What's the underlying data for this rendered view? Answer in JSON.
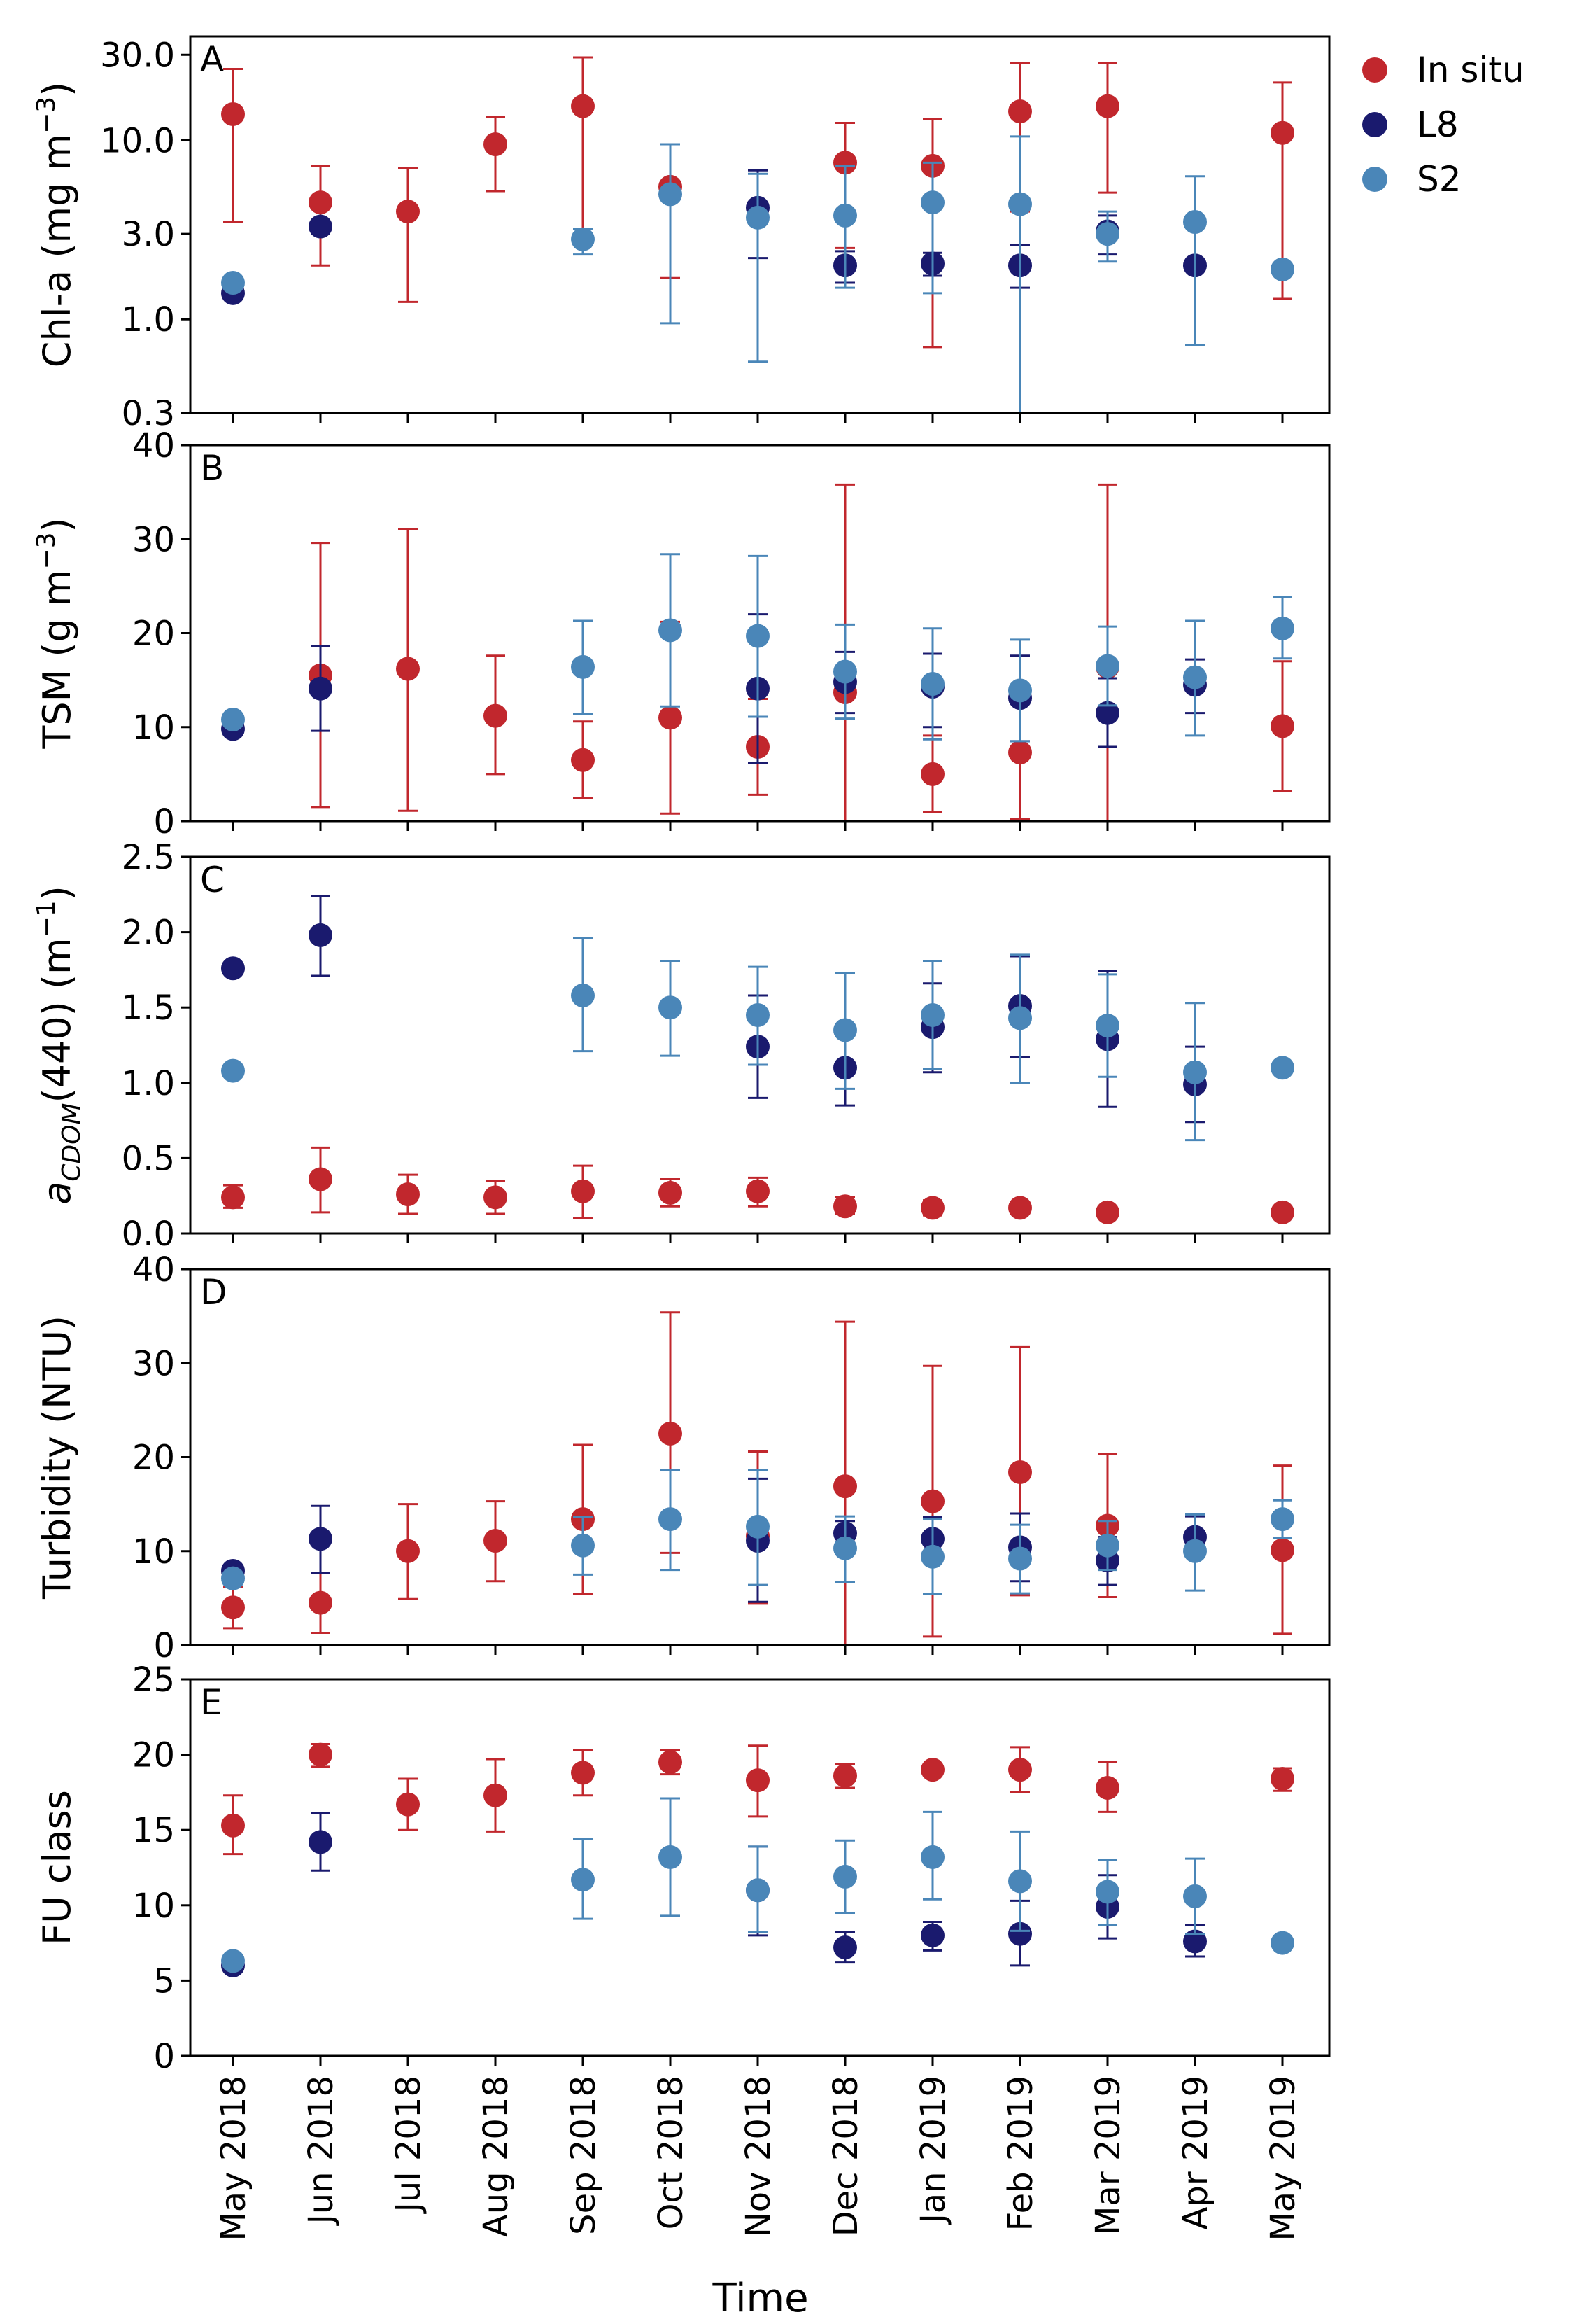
{
  "figure": {
    "xlabel": "Time",
    "legend": [
      {
        "name": "In situ",
        "color": "#c1272d"
      },
      {
        "name": "L8",
        "color": "#1a1a6e"
      },
      {
        "name": "S2",
        "color": "#4a86b8"
      }
    ]
  },
  "chart_data": [
    {
      "type": "scatter",
      "panel": "A",
      "ylabel": "Chl-a (mg m",
      "ylabel_sup": "−3",
      "ylabel_tail": ")",
      "yscale": "log",
      "ylim": [
        0.3,
        38
      ],
      "yticks": [
        0.3,
        1.0,
        3.0,
        10.0,
        30.0
      ],
      "ytick_labels": [
        "0.3",
        "1.0",
        "3.0",
        "10.0",
        "30.0"
      ],
      "categories": [
        "May 2018",
        "Jun 2018",
        "Jul 2018",
        "Aug 2018",
        "Sep 2018",
        "Oct 2018",
        "Nov 2018",
        "Dec 2018",
        "Jan 2019",
        "Feb 2019",
        "Mar 2019",
        "Apr 2019",
        "May 2019"
      ],
      "series": [
        {
          "name": "In situ",
          "values": [
            14,
            4.5,
            4,
            9.5,
            15.5,
            5.5,
            null,
            7.5,
            7.2,
            14.5,
            15.5,
            null,
            11
          ],
          "err_low": [
            3.5,
            2.0,
            1.25,
            5.2,
            3.2,
            1.7,
            null,
            2.5,
            0.7,
            4.0,
            5.1,
            null,
            1.3
          ],
          "err_high": [
            25,
            7.2,
            7.0,
            13.5,
            29,
            9.5,
            null,
            12.5,
            13.2,
            27,
            27,
            null,
            21
          ]
        },
        {
          "name": "L8",
          "values": [
            1.4,
            3.3,
            null,
            null,
            null,
            null,
            4.2,
            2.0,
            2.05,
            2.0,
            3.1,
            2.0,
            null
          ],
          "err_low": [
            null,
            3.0,
            null,
            null,
            null,
            null,
            2.2,
            1.6,
            1.75,
            1.5,
            2.3,
            null,
            null
          ],
          "err_high": [
            null,
            3.6,
            null,
            null,
            null,
            null,
            6.8,
            2.4,
            2.35,
            2.6,
            3.8,
            null,
            null
          ]
        },
        {
          "name": "S2",
          "values": [
            1.6,
            null,
            null,
            null,
            2.8,
            5.0,
            3.7,
            3.8,
            4.5,
            4.4,
            3.0,
            3.5,
            1.9
          ],
          "err_low": [
            null,
            null,
            null,
            null,
            2.3,
            0.95,
            0.58,
            1.5,
            1.4,
            0.3,
            2.1,
            0.72,
            null
          ],
          "err_high": [
            null,
            null,
            null,
            null,
            3.2,
            9.5,
            6.5,
            7.2,
            7.5,
            10.5,
            4.0,
            6.3,
            null
          ]
        }
      ]
    },
    {
      "type": "scatter",
      "panel": "B",
      "ylabel": "TSM (g m",
      "ylabel_sup": "−3",
      "ylabel_tail": ")",
      "yscale": "linear",
      "ylim": [
        0,
        40
      ],
      "yticks": [
        0,
        10,
        20,
        30,
        40
      ],
      "ytick_labels": [
        "0",
        "10",
        "20",
        "30",
        "40"
      ],
      "categories": [
        "May 2018",
        "Jun 2018",
        "Jul 2018",
        "Aug 2018",
        "Sep 2018",
        "Oct 2018",
        "Nov 2018",
        "Dec 2018",
        "Jan 2019",
        "Feb 2019",
        "Mar 2019",
        "Apr 2019",
        "May 2019"
      ],
      "series": [
        {
          "name": "In situ",
          "values": [
            null,
            15.5,
            16.2,
            11.2,
            6.5,
            11.0,
            7.9,
            13.7,
            5.0,
            7.3,
            16.4,
            null,
            10.1
          ],
          "err_low": [
            null,
            1.5,
            1.1,
            5.0,
            2.5,
            0.8,
            2.8,
            0,
            1.0,
            0.2,
            0,
            null,
            3.2
          ],
          "err_high": [
            null,
            29.6,
            31.1,
            17.6,
            10.6,
            21.2,
            13.0,
            35.8,
            9.1,
            14.5,
            35.8,
            null,
            17.0
          ]
        },
        {
          "name": "L8",
          "values": [
            9.8,
            14.1,
            null,
            null,
            null,
            null,
            14.1,
            14.8,
            14.3,
            13.1,
            11.5,
            14.5,
            null
          ],
          "err_low": [
            null,
            9.6,
            null,
            null,
            null,
            null,
            6.2,
            11.5,
            10.0,
            8.5,
            7.9,
            11.5,
            null
          ],
          "err_high": [
            null,
            18.6,
            null,
            null,
            null,
            null,
            22.0,
            18.0,
            17.8,
            17.6,
            15.2,
            17.2,
            null
          ]
        },
        {
          "name": "S2",
          "values": [
            10.8,
            null,
            null,
            null,
            16.4,
            20.3,
            19.7,
            15.9,
            14.6,
            13.9,
            16.5,
            15.3,
            20.5
          ],
          "err_low": [
            null,
            null,
            null,
            null,
            11.4,
            12.2,
            11.1,
            10.9,
            8.7,
            8.5,
            12.3,
            9.1,
            17.3
          ],
          "err_high": [
            null,
            null,
            null,
            null,
            21.3,
            28.4,
            28.2,
            20.9,
            20.5,
            19.3,
            20.7,
            21.3,
            23.8
          ]
        }
      ]
    },
    {
      "type": "scatter",
      "panel": "C",
      "ylabel": "a",
      "ylabel_sub": "CDOM",
      "ylabel_tail": "(440) (m",
      "ylabel_sup": "−1",
      "ylabel_end": ")",
      "yscale": "linear",
      "ylim": [
        0,
        2.5
      ],
      "yticks": [
        0,
        0.5,
        1.0,
        1.5,
        2.0,
        2.5
      ],
      "ytick_labels": [
        "0.0",
        "0.5",
        "1.0",
        "1.5",
        "2.0",
        "2.5"
      ],
      "categories": [
        "May 2018",
        "Jun 2018",
        "Jul 2018",
        "Aug 2018",
        "Sep 2018",
        "Oct 2018",
        "Nov 2018",
        "Dec 2018",
        "Jan 2019",
        "Feb 2019",
        "Mar 2019",
        "Apr 2019",
        "May 2019"
      ],
      "series": [
        {
          "name": "In situ",
          "values": [
            0.24,
            0.36,
            0.26,
            0.24,
            0.28,
            0.27,
            0.28,
            0.18,
            0.17,
            0.17,
            0.14,
            null,
            0.14
          ],
          "err_low": [
            0.17,
            0.14,
            0.13,
            0.13,
            0.1,
            0.18,
            0.18,
            0.13,
            0.12,
            null,
            null,
            null,
            null
          ],
          "err_high": [
            0.32,
            0.57,
            0.39,
            0.35,
            0.45,
            0.36,
            0.37,
            0.24,
            0.22,
            null,
            null,
            null,
            null
          ]
        },
        {
          "name": "L8",
          "values": [
            1.76,
            1.98,
            null,
            null,
            null,
            null,
            1.24,
            1.1,
            1.37,
            1.51,
            1.29,
            0.99,
            null
          ],
          "err_low": [
            null,
            1.71,
            null,
            null,
            null,
            null,
            0.9,
            0.85,
            1.07,
            1.17,
            0.84,
            0.74,
            null
          ],
          "err_high": [
            null,
            2.24,
            null,
            null,
            null,
            null,
            1.58,
            1.34,
            1.66,
            1.84,
            1.74,
            1.24,
            null
          ]
        },
        {
          "name": "S2",
          "values": [
            1.08,
            null,
            null,
            null,
            1.58,
            1.5,
            1.45,
            1.35,
            1.45,
            1.43,
            1.38,
            1.07,
            1.1
          ],
          "err_low": [
            null,
            null,
            null,
            null,
            1.21,
            1.18,
            1.12,
            0.96,
            1.09,
            1.0,
            1.04,
            0.62,
            null
          ],
          "err_high": [
            null,
            null,
            null,
            null,
            1.96,
            1.81,
            1.77,
            1.73,
            1.81,
            1.85,
            1.72,
            1.53,
            null
          ]
        }
      ]
    },
    {
      "type": "scatter",
      "panel": "D",
      "ylabel": "Turbidity (NTU)",
      "yscale": "linear",
      "ylim": [
        0,
        40
      ],
      "yticks": [
        0,
        10,
        20,
        30,
        40
      ],
      "ytick_labels": [
        "0",
        "10",
        "20",
        "30",
        "40"
      ],
      "categories": [
        "May 2018",
        "Jun 2018",
        "Jul 2018",
        "Aug 2018",
        "Sep 2018",
        "Oct 2018",
        "Nov 2018",
        "Dec 2018",
        "Jan 2019",
        "Feb 2019",
        "Mar 2019",
        "Apr 2019",
        "May 2019"
      ],
      "series": [
        {
          "name": "In situ",
          "values": [
            4.0,
            4.5,
            10.0,
            11.1,
            13.4,
            22.5,
            11.6,
            16.9,
            15.3,
            18.4,
            12.7,
            null,
            10.1
          ],
          "err_low": [
            1.8,
            1.3,
            4.9,
            6.8,
            5.4,
            9.8,
            4.4,
            0,
            0.9,
            5.3,
            5.1,
            null,
            1.2
          ],
          "err_high": [
            6.2,
            7.7,
            15.0,
            15.3,
            21.3,
            35.4,
            20.6,
            34.4,
            29.7,
            31.7,
            20.3,
            null,
            19.1
          ]
        },
        {
          "name": "L8",
          "values": [
            7.9,
            11.3,
            null,
            null,
            null,
            null,
            11.1,
            11.9,
            11.3,
            10.4,
            9.0,
            11.5,
            null
          ],
          "err_low": [
            null,
            7.7,
            null,
            null,
            null,
            null,
            4.6,
            10.5,
            9.0,
            6.8,
            6.4,
            9.5,
            null
          ],
          "err_high": [
            null,
            14.8,
            null,
            null,
            null,
            null,
            17.7,
            13.2,
            13.6,
            14.0,
            11.5,
            13.7,
            null
          ]
        },
        {
          "name": "S2",
          "values": [
            7.1,
            null,
            null,
            null,
            10.6,
            13.4,
            12.6,
            10.3,
            9.4,
            9.2,
            10.6,
            10.0,
            13.4
          ],
          "err_low": [
            null,
            null,
            null,
            null,
            7.5,
            8.0,
            6.4,
            6.7,
            5.4,
            5.5,
            8.0,
            5.8,
            11.4
          ],
          "err_high": [
            null,
            null,
            null,
            null,
            13.6,
            18.6,
            18.6,
            13.7,
            13.4,
            12.8,
            13.2,
            13.9,
            15.4
          ]
        }
      ]
    },
    {
      "type": "scatter",
      "panel": "E",
      "ylabel": "FU class",
      "yscale": "linear",
      "ylim": [
        0,
        25
      ],
      "yticks": [
        0,
        5,
        10,
        15,
        20,
        25
      ],
      "ytick_labels": [
        "0",
        "5",
        "10",
        "15",
        "20",
        "25"
      ],
      "categories": [
        "May 2018",
        "Jun 2018",
        "Jul 2018",
        "Aug 2018",
        "Sep 2018",
        "Oct 2018",
        "Nov 2018",
        "Dec 2018",
        "Jan 2019",
        "Feb 2019",
        "Mar 2019",
        "Apr 2019",
        "May 2019"
      ],
      "series": [
        {
          "name": "In situ",
          "values": [
            15.3,
            20.0,
            16.7,
            17.3,
            18.8,
            19.5,
            18.3,
            18.6,
            19.0,
            19.0,
            17.8,
            null,
            18.4
          ],
          "err_low": [
            13.4,
            19.2,
            15.0,
            14.9,
            17.3,
            18.7,
            15.9,
            17.8,
            null,
            17.5,
            16.2,
            null,
            17.6
          ],
          "err_high": [
            17.3,
            20.7,
            18.4,
            19.7,
            20.3,
            20.3,
            20.6,
            19.4,
            null,
            20.5,
            19.5,
            null,
            19.1
          ]
        },
        {
          "name": "L8",
          "values": [
            6.0,
            14.2,
            null,
            null,
            null,
            null,
            11.0,
            7.2,
            8.0,
            8.1,
            9.9,
            7.6,
            null
          ],
          "err_low": [
            null,
            12.3,
            null,
            null,
            null,
            null,
            8.0,
            6.2,
            7.0,
            6.0,
            7.8,
            6.6,
            null
          ],
          "err_high": [
            null,
            16.1,
            null,
            null,
            null,
            null,
            13.9,
            8.2,
            8.9,
            10.3,
            12.0,
            8.7,
            null
          ]
        },
        {
          "name": "S2",
          "values": [
            6.3,
            null,
            null,
            null,
            11.7,
            13.2,
            11.0,
            11.9,
            13.2,
            11.6,
            10.9,
            10.6,
            7.5
          ],
          "err_low": [
            null,
            null,
            null,
            null,
            9.1,
            9.3,
            8.2,
            9.5,
            10.4,
            8.3,
            8.7,
            8.1,
            null
          ],
          "err_high": [
            null,
            null,
            null,
            null,
            14.4,
            17.1,
            13.9,
            14.3,
            16.2,
            14.9,
            13.0,
            13.1,
            null
          ]
        }
      ]
    }
  ]
}
